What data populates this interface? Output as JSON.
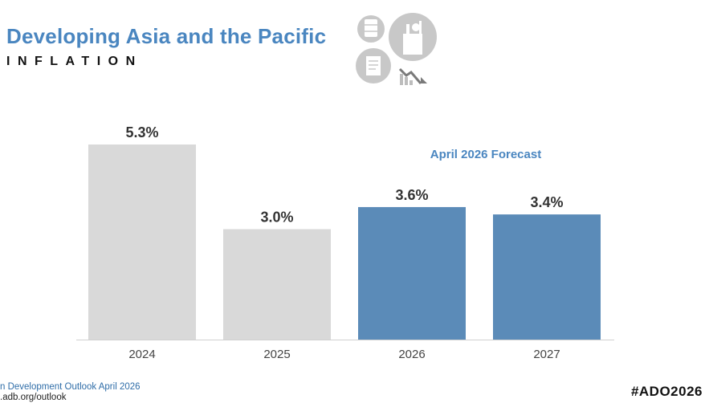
{
  "header": {
    "title": "Developing Asia and the Pacific",
    "subtitle": "INFLATION"
  },
  "annotation": {
    "forecast_label": "April 2026 Forecast"
  },
  "chart_data": {
    "type": "bar",
    "categories": [
      "2024",
      "2025",
      "2026",
      "2027"
    ],
    "values": [
      5.3,
      3.0,
      3.6,
      3.4
    ],
    "data_labels": [
      "5.3%",
      "3.0%",
      "3.6%",
      "3.4%"
    ],
    "bar_colors": [
      "#d9d9d9",
      "#d9d9d9",
      "#5b8bb8",
      "#5b8bb8"
    ],
    "ylim": [
      0,
      5.3
    ],
    "grid": false,
    "legend": "none"
  },
  "footer": {
    "source": "n Development Outlook April 2026",
    "url": ".adb.org/outlook",
    "hashtag": "#ADO2026"
  },
  "colors": {
    "accent": "#4a86c0",
    "historical": "#d9d9d9",
    "forecast": "#5b8bb8"
  },
  "icons": [
    "oil-barrel-icon",
    "grocery-bag-icon",
    "receipt-icon",
    "falling-price-chart-icon"
  ]
}
